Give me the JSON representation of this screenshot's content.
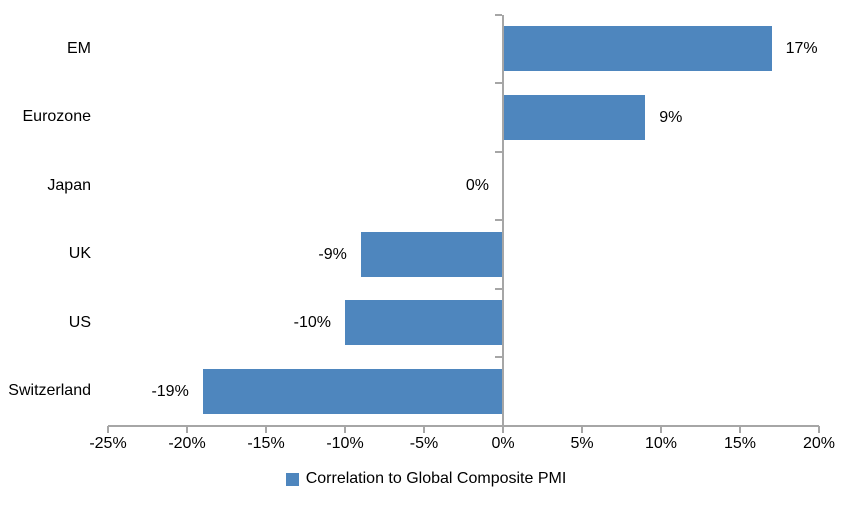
{
  "chart_data": {
    "type": "bar",
    "orientation": "horizontal",
    "categories": [
      "EM",
      "Eurozone",
      "Japan",
      "UK",
      "US",
      "Switzerland"
    ],
    "values": [
      17,
      9,
      0,
      -9,
      -10,
      -19
    ],
    "value_labels": [
      "17%",
      "9%",
      "0%",
      "-9%",
      "-10%",
      "-19%"
    ],
    "series_name": "Correlation to Global Composite PMI",
    "xlim": [
      -25,
      20
    ],
    "xticks": [
      -25,
      -20,
      -15,
      -10,
      -5,
      0,
      5,
      10,
      15,
      20
    ],
    "xtick_labels": [
      "-25%",
      "-20%",
      "-15%",
      "-10%",
      "-5%",
      "0%",
      "5%",
      "10%",
      "15%",
      "20%"
    ],
    "grid": false,
    "legend_position": "bottom-center",
    "colors": {
      "bar": "#4E86BE",
      "axis": "#A6A6A6",
      "text": "#000000",
      "background": "#FFFFFF"
    }
  }
}
